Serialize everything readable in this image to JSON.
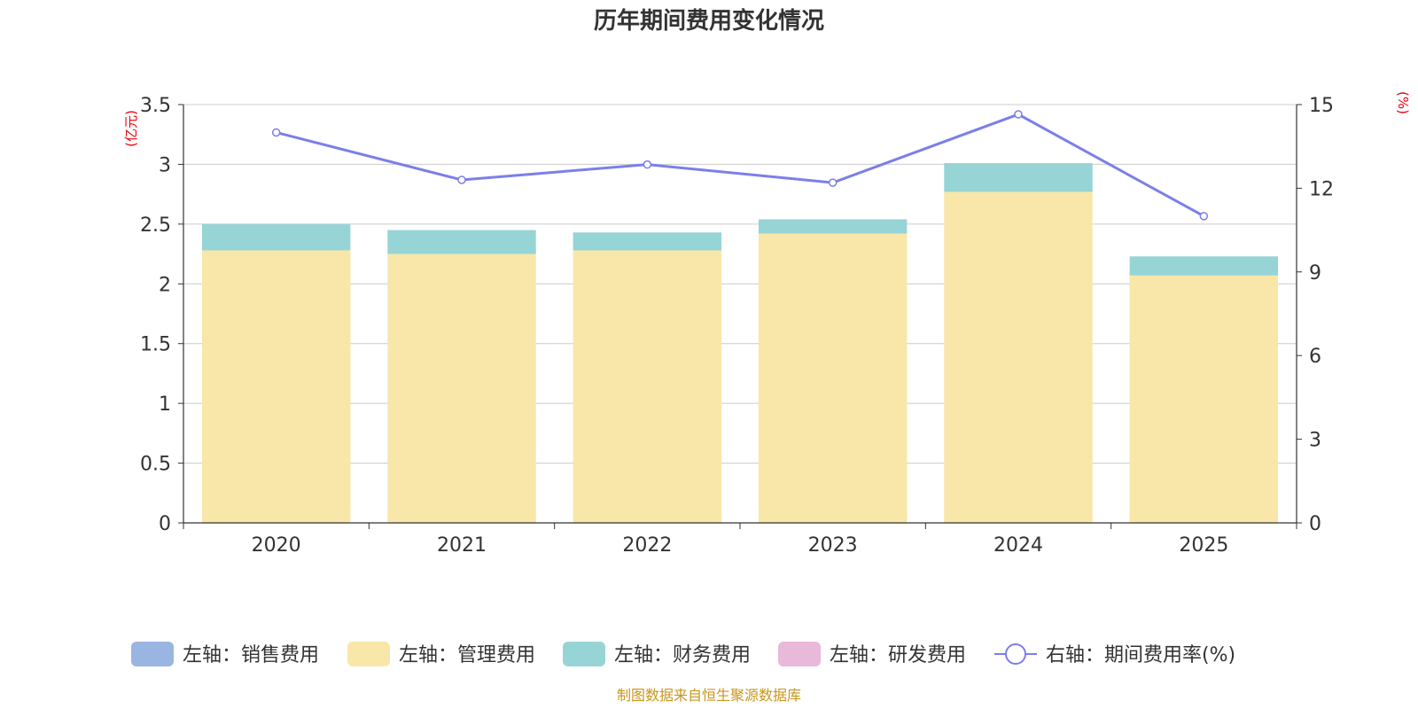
{
  "chart_data": {
    "type": "bar",
    "title": "历年期间费用变化情况",
    "categories": [
      "2020",
      "2021",
      "2022",
      "2023",
      "2024",
      "2025"
    ],
    "y_left": {
      "unit": "(亿元)",
      "ylim": [
        0,
        3.5
      ],
      "ticks": [
        "0",
        "0.5",
        "1",
        "1.5",
        "2",
        "2.5",
        "3",
        "3.5"
      ]
    },
    "y_right": {
      "unit": "(%)",
      "ylim": [
        0,
        15
      ],
      "ticks": [
        "0",
        "3",
        "6",
        "9",
        "12",
        "15"
      ]
    },
    "grid": true,
    "legend_position": "bottom",
    "series": [
      {
        "name": "左轴：销售费用",
        "type": "bar",
        "axis": "left",
        "color": "#9bb5e2",
        "values": [
          0,
          0,
          0,
          0,
          0,
          0
        ]
      },
      {
        "name": "左轴：管理费用",
        "type": "bar",
        "axis": "left",
        "color": "#f8e7a9",
        "values": [
          2.28,
          2.25,
          2.28,
          2.42,
          2.77,
          2.07
        ]
      },
      {
        "name": "左轴：财务费用",
        "type": "bar",
        "axis": "left",
        "color": "#97d4d5",
        "values": [
          0.22,
          0.2,
          0.15,
          0.12,
          0.24,
          0.16
        ]
      },
      {
        "name": "左轴：研发费用",
        "type": "bar",
        "axis": "left",
        "color": "#e8b9d9",
        "values": [
          0,
          0,
          0,
          0,
          0,
          0
        ]
      },
      {
        "name": "右轴：期间费用率(%)",
        "type": "line",
        "axis": "right",
        "color": "#7b7fe8",
        "values": [
          14.0,
          12.3,
          12.85,
          12.2,
          14.65,
          11.0
        ]
      }
    ]
  },
  "footer": {
    "source": "制图数据来自恒生聚源数据库"
  }
}
